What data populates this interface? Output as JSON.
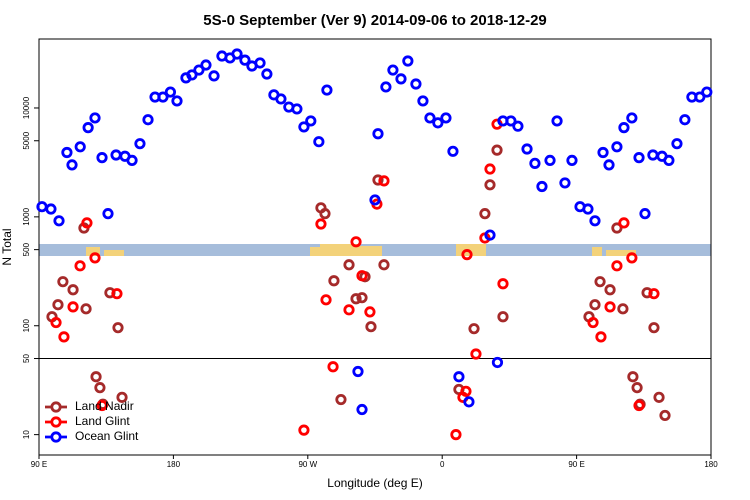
{
  "chart_data": {
    "type": "scatter",
    "title": "5S-0 September (Ver 9)   2014-09-06 to 2018-12-29",
    "xlabel": "Longitude (deg E)",
    "ylabel": "N Total",
    "xlim": [
      90,
      540
    ],
    "xticks": [
      {
        "value": 90,
        "label": "90 E"
      },
      180,
      {
        "value": 270,
        "label": "90 W"
      },
      {
        "value": 360,
        "label": "0"
      },
      {
        "value": 450,
        "label": "90 E"
      },
      {
        "value": 540,
        "label": "180"
      }
    ],
    "ylim": [
      6.5,
      43000
    ],
    "log_y": true,
    "yticks": [
      10,
      50,
      100,
      500,
      1000,
      5000,
      10000
    ],
    "reference_lines": [
      50
    ],
    "legend": "bottom-left",
    "series": [
      {
        "name": "Land Nadir",
        "color": "#a52a2a",
        "x": [
          98.7,
          102.7,
          106,
          112.8,
          120.1,
          121.5,
          128.2,
          130.8,
          132.8,
          137.5,
          142.9,
          145.6,
          278.8,
          281.5,
          287.5,
          292.2,
          297.6,
          302.3,
          306.3,
          308.3,
          312.3,
          317,
          321,
          371.2,
          381.3,
          388.6,
          392,
          396.7,
          400.7,
          458.3,
          462.3,
          465.7,
          472.4,
          477,
          481,
          487.7,
          490.5,
          492.5,
          497.2,
          501.8,
          505.2,
          509.2
        ],
        "values": [
          121,
          156,
          254,
          214,
          790,
          143,
          34,
          27,
          19,
          201,
          96,
          22,
          1210,
          1070,
          259,
          21,
          363,
          177,
          181,
          282,
          98,
          2180,
          363,
          26,
          94,
          1070,
          1970,
          4100,
          121,
          121,
          156,
          254,
          214,
          790,
          143,
          34,
          27,
          19,
          201,
          96,
          22,
          15
        ]
      },
      {
        "name": "Land Glint",
        "color": "#ff0000",
        "x": [
          101.4,
          106.7,
          112.8,
          117.5,
          122.1,
          127.5,
          132.2,
          142.2,
          267.4,
          278.8,
          282.2,
          286.9,
          297.6,
          302.3,
          306.3,
          311.6,
          316.3,
          321,
          369.2,
          373.9,
          375.9,
          376.6,
          382.6,
          388.6,
          392,
          396.7,
          400.7,
          461,
          466.3,
          472.4,
          477,
          481.7,
          487,
          491.8,
          501.8
        ],
        "values": [
          107,
          79,
          149,
          355,
          880,
          420,
          18.5,
          197,
          11,
          860,
          173,
          42,
          140,
          590,
          288,
          134,
          1310,
          2140,
          10,
          22,
          25,
          450,
          55,
          640,
          2750,
          7100,
          243,
          107,
          79,
          149,
          355,
          880,
          420,
          18.5,
          197
        ]
      },
      {
        "name": "Ocean Glint",
        "color": "#0000ff",
        "x": [
          92,
          98,
          103.4,
          108.7,
          112.1,
          117.6,
          122.9,
          127.5,
          132.2,
          136.2,
          141.6,
          147.6,
          152.3,
          157.6,
          163,
          167.7,
          173,
          178,
          182.4,
          188.4,
          192.4,
          197.1,
          201.8,
          207.2,
          212.5,
          217.9,
          222.6,
          227.9,
          232.6,
          238,
          242.6,
          247.3,
          252,
          257.3,
          262.7,
          267.4,
          272,
          277.4,
          282.8,
          315,
          317,
          322.3,
          327,
          332.4,
          337,
          342.4,
          347.1,
          351.8,
          357.1,
          362.5,
          367.2,
          392,
          400.7,
          406,
          410.7,
          416.8,
          422.1,
          426.8,
          432.2,
          436.9,
          442.2,
          446.9,
          452.3,
          457.6,
          462.3,
          467.7,
          471.7,
          477,
          481.7,
          487,
          491.8,
          495.8,
          501.1,
          507.2,
          511.8,
          517.2,
          522.5,
          527.2,
          532.5,
          537.2,
          303.6,
          306.3,
          371.2,
          377.9,
          397
        ],
        "values": [
          1240,
          1180,
          920,
          3900,
          3000,
          4400,
          6600,
          8100,
          3500,
          1070,
          3700,
          3600,
          3300,
          4700,
          7800,
          12600,
          12600,
          14000,
          11600,
          18900,
          20100,
          22300,
          24800,
          19700,
          30000,
          28800,
          31300,
          27500,
          24300,
          25900,
          20500,
          13200,
          12100,
          10200,
          9800,
          6700,
          7600,
          4900,
          14600,
          1430,
          5800,
          15600,
          22300,
          18500,
          27000,
          16600,
          11600,
          8100,
          7300,
          8100,
          4000,
          680,
          7600,
          7600,
          6800,
          4200,
          3100,
          1900,
          3300,
          7600,
          2050,
          3300,
          1240,
          1180,
          920,
          3900,
          3000,
          4400,
          6600,
          8100,
          3500,
          1070,
          3700,
          3600,
          3300,
          4700,
          7800,
          12600,
          12600,
          14000,
          38,
          17,
          34,
          20,
          46
        ]
      }
    ]
  }
}
